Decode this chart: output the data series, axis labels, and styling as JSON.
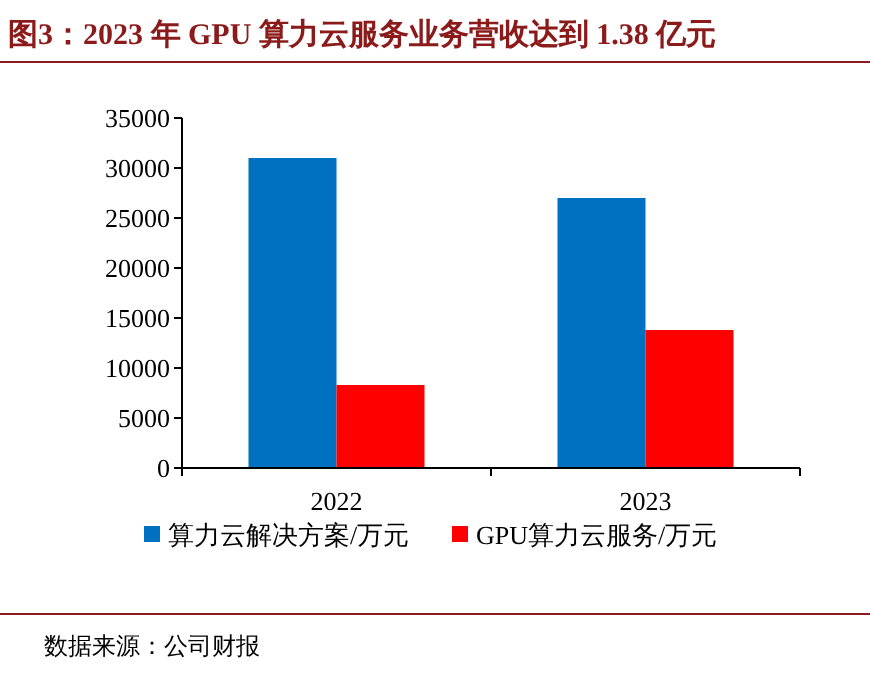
{
  "chart_data": {
    "type": "bar",
    "title": "图3：2023 年 GPU 算力云服务业务营收达到 1.38 亿元",
    "categories": [
      "2022",
      "2023"
    ],
    "series": [
      {
        "name": "算力云解决方案/万元",
        "color": "#0070c0",
        "values": [
          31000,
          27000
        ]
      },
      {
        "name": "GPU算力云服务/万元",
        "color": "#ff0000",
        "values": [
          8300,
          13800
        ]
      }
    ],
    "ylim": [
      0,
      35000
    ],
    "yticks": [
      0,
      5000,
      10000,
      15000,
      20000,
      25000,
      30000,
      35000
    ],
    "grid": false,
    "legend": "bottom",
    "annotations": [
      "数据来源：公司财报"
    ]
  }
}
